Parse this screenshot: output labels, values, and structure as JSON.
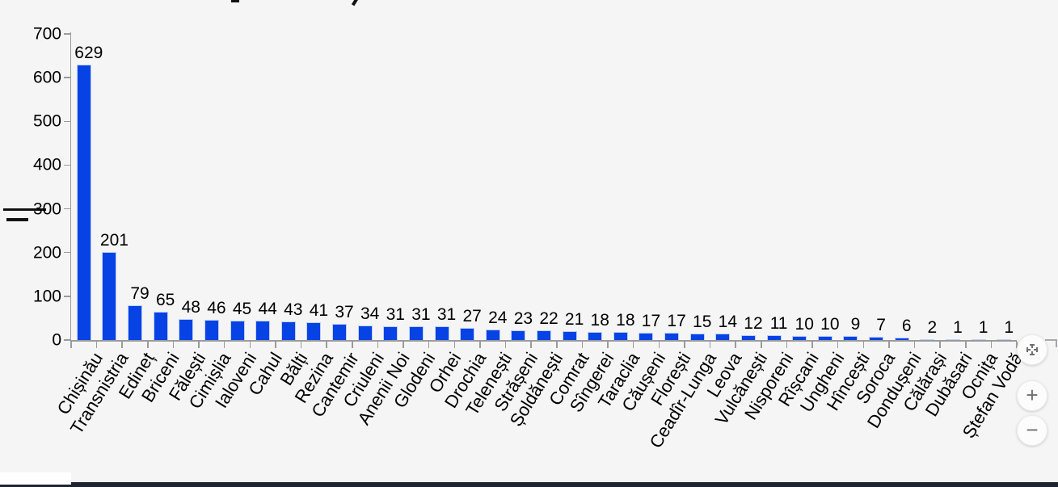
{
  "chart_data": {
    "type": "bar",
    "title": "",
    "xlabel": "",
    "ylabel": "",
    "categories": [
      "Chișinău",
      "Transnistria",
      "Edineț",
      "Briceni",
      "Fălești",
      "Cimișlia",
      "Ialoveni",
      "Cahul",
      "Bălți",
      "Rezina",
      "Cantemir",
      "Criuleni",
      "Anenii Noi",
      "Glodeni",
      "Orhei",
      "Drochia",
      "Telenești",
      "Strășeni",
      "Șoldănești",
      "Comrat",
      "Sîngerei",
      "Taraclia",
      "Căușeni",
      "Florești",
      "Ceadîr-Lunga",
      "Leova",
      "Vulcănești",
      "Nisporeni",
      "Rîșcani",
      "Ungheni",
      "Hîncești",
      "Soroca",
      "Dondușeni",
      "Călărași",
      "Dubăsari",
      "Ocnița",
      "Ștefan Vodă"
    ],
    "values": [
      629,
      201,
      79,
      65,
      48,
      46,
      45,
      44,
      43,
      41,
      37,
      34,
      31,
      31,
      31,
      27,
      24,
      23,
      22,
      21,
      18,
      18,
      17,
      17,
      15,
      14,
      12,
      11,
      10,
      10,
      9,
      7,
      6,
      2,
      1,
      1,
      1
    ],
    "ylim": [
      0,
      700
    ],
    "yticks": [
      0,
      100,
      200,
      300,
      400,
      500,
      600,
      700
    ],
    "grid": false,
    "legend": "none",
    "bar_color": "#0742e4",
    "bar_border_color": "#bdd0f5",
    "axis_color": "#9b9b9b",
    "label_color": "#000000"
  },
  "controls": {
    "pan_icon": "drag-handle-icon",
    "zoom_in_label": "+",
    "zoom_out_label": "−"
  },
  "chrome": {
    "bottom_bar_color": "#1c2530"
  }
}
